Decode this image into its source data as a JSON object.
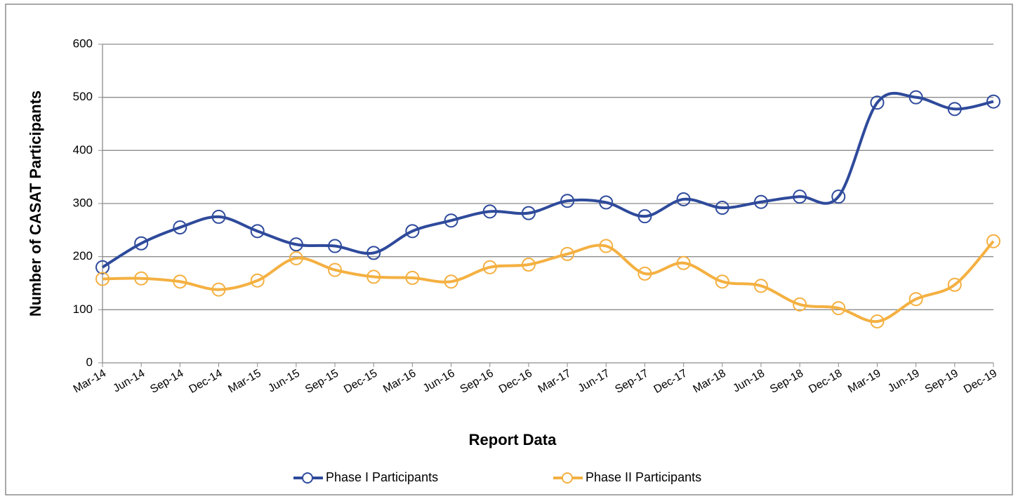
{
  "chart_data": {
    "type": "line",
    "x_label": "Report Data",
    "y_label": "Number of CASAT Participants",
    "categories": [
      "Mar-14",
      "Jun-14",
      "Sep-14",
      "Dec-14",
      "Mar-15",
      "Jun-15",
      "Sep-15",
      "Dec-15",
      "Mar-16",
      "Jun-16",
      "Sep-16",
      "Dec-16",
      "Mar-17",
      "Jun-17",
      "Sep-17",
      "Dec-17",
      "Mar-18",
      "Jun-18",
      "Sep-18",
      "Dec-18",
      "Mar-19",
      "Jun-19",
      "Sep-19",
      "Dec-19"
    ],
    "series": [
      {
        "name": "Phase I Participants",
        "color": "#2e4a9b",
        "values": [
          180,
          225,
          255,
          275,
          248,
          223,
          220,
          207,
          248,
          268,
          285,
          282,
          305,
          302,
          276,
          308,
          292,
          303,
          313,
          313,
          490,
          500,
          478,
          492
        ]
      },
      {
        "name": "Phase II Participants",
        "color": "#f4b041",
        "values": [
          158,
          159,
          153,
          138,
          155,
          197,
          175,
          162,
          160,
          153,
          180,
          185,
          205,
          220,
          168,
          188,
          153,
          145,
          110,
          103,
          78,
          120,
          147,
          229
        ]
      }
    ],
    "ylim": [
      0,
      600
    ],
    "yticks": [
      0,
      100,
      200,
      300,
      400,
      500,
      600
    ],
    "grid": true
  }
}
